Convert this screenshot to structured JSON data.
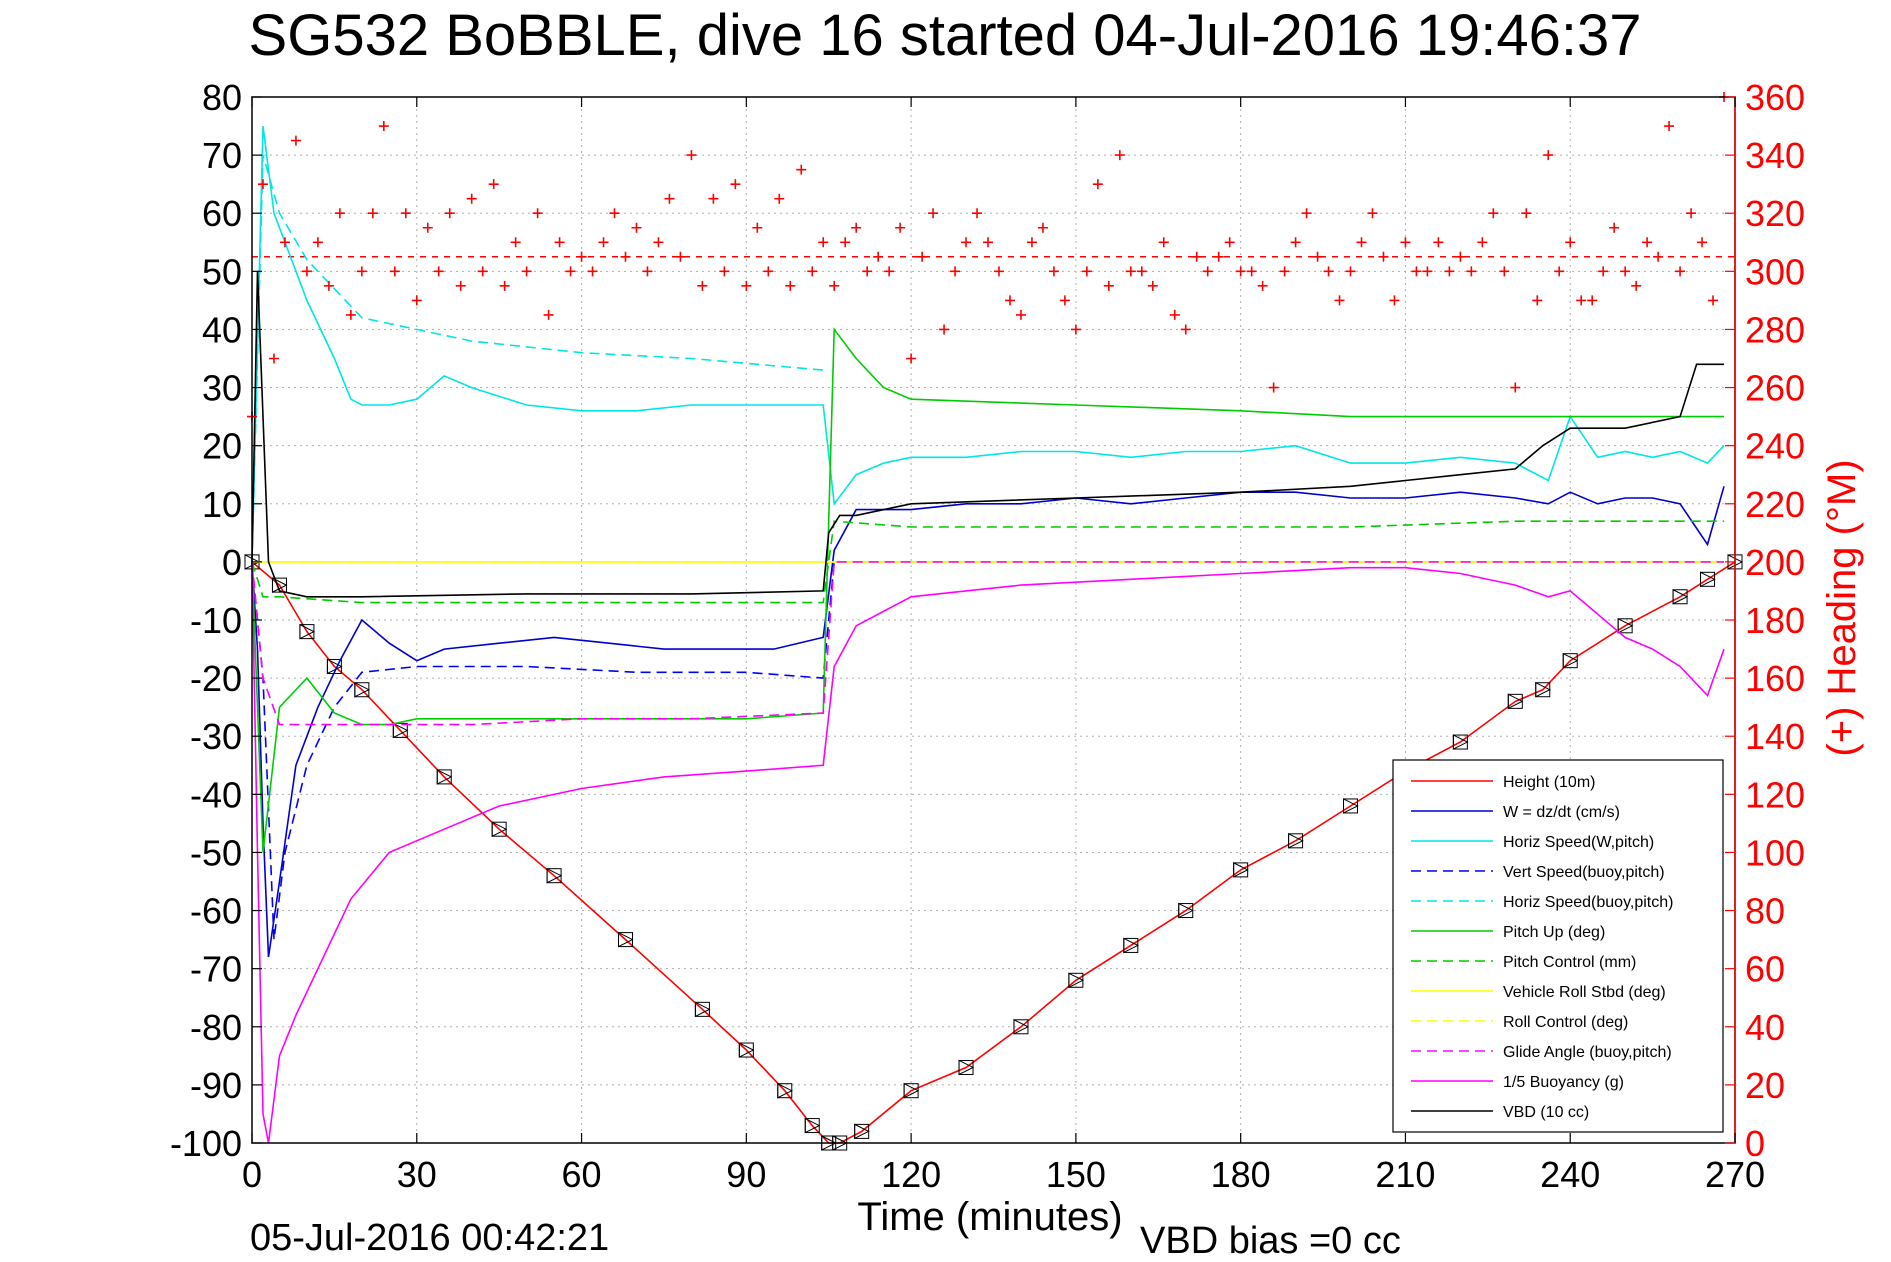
{
  "chart_data": {
    "type": "line",
    "title": "SG532 BoBBLE, dive 16 started 04-Jul-2016 19:46:37",
    "xlabel": "Time (minutes)",
    "ylabel_right": "(+) Heading (°M)",
    "xlim": [
      0,
      270
    ],
    "ylim": [
      -100,
      80
    ],
    "ylim_right": [
      0,
      360
    ],
    "x_ticks": [
      0,
      30,
      60,
      90,
      120,
      150,
      180,
      210,
      240,
      270
    ],
    "y_ticks": [
      -100,
      -90,
      -80,
      -70,
      -60,
      -50,
      -40,
      -30,
      -20,
      -10,
      0,
      10,
      20,
      30,
      40,
      50,
      60,
      70,
      80
    ],
    "y_ticks_right": [
      0,
      20,
      40,
      60,
      80,
      100,
      120,
      140,
      160,
      180,
      200,
      220,
      240,
      260,
      280,
      300,
      320,
      340,
      360
    ],
    "grid": true,
    "legend_position": "bottom-right",
    "end_time": "05-Jul-2016 00:42:21",
    "vbd_bias": "VBD bias =0 cc",
    "series": [
      {
        "name": "Height (10m)",
        "color": "#ff0000",
        "style": "solid",
        "markers": "triangle-squares",
        "x": [
          0,
          5,
          10,
          15,
          20,
          27,
          35,
          45,
          55,
          68,
          82,
          90,
          97,
          102,
          105,
          107,
          111,
          120,
          130,
          140,
          150,
          160,
          170,
          180,
          190,
          200,
          210,
          220,
          230,
          235,
          240,
          250,
          260,
          265,
          270
        ],
        "y": [
          0,
          -4,
          -12,
          -18,
          -22,
          -29,
          -37,
          -46,
          -54,
          -65,
          -77,
          -84,
          -91,
          -97,
          -100,
          -100,
          -98,
          -91,
          -87,
          -80,
          -72,
          -66,
          -60,
          -53,
          -48,
          -42,
          -36,
          -31,
          -24,
          -22,
          -17,
          -11,
          -6,
          -3,
          0
        ]
      },
      {
        "name": "W = dz/dt (cm/s)",
        "color": "#0000cc",
        "style": "solid",
        "x": [
          0,
          1,
          2,
          3,
          5,
          8,
          12,
          16,
          20,
          25,
          30,
          35,
          45,
          55,
          65,
          75,
          85,
          95,
          104,
          106,
          110,
          120,
          130,
          140,
          150,
          160,
          170,
          180,
          190,
          200,
          210,
          220,
          230,
          236,
          240,
          245,
          250,
          255,
          260,
          265,
          268
        ],
        "y": [
          0,
          -15,
          -45,
          -68,
          -55,
          -35,
          -25,
          -17,
          -10,
          -14,
          -17,
          -15,
          -14,
          -13,
          -14,
          -15,
          -15,
          -15,
          -13,
          2,
          9,
          9,
          10,
          10,
          11,
          10,
          11,
          12,
          12,
          11,
          11,
          12,
          11,
          10,
          12,
          10,
          11,
          11,
          10,
          3,
          13
        ]
      },
      {
        "name": "Horiz Speed(W,pitch)",
        "color": "#00e5e5",
        "style": "solid",
        "x": [
          0,
          2,
          4,
          6,
          10,
          15,
          18,
          20,
          25,
          30,
          35,
          40,
          50,
          60,
          70,
          80,
          90,
          104,
          106,
          110,
          115,
          120,
          130,
          140,
          150,
          160,
          170,
          180,
          190,
          200,
          210,
          220,
          230,
          236,
          240,
          245,
          250,
          255,
          260,
          265,
          268
        ],
        "y": [
          0,
          75,
          60,
          55,
          45,
          35,
          28,
          27,
          27,
          28,
          32,
          30,
          27,
          26,
          26,
          27,
          27,
          27,
          10,
          15,
          17,
          18,
          18,
          19,
          19,
          18,
          19,
          19,
          20,
          17,
          17,
          18,
          17,
          14,
          25,
          18,
          19,
          18,
          19,
          17,
          20
        ]
      },
      {
        "name": "Vert Speed(buoy,pitch)",
        "color": "#0000ff",
        "style": "dashed",
        "x": [
          0,
          2,
          4,
          6,
          10,
          15,
          20,
          30,
          50,
          70,
          90,
          104,
          106
        ],
        "y": [
          0,
          -20,
          -65,
          -50,
          -35,
          -25,
          -19,
          -18,
          -18,
          -19,
          -19,
          -20,
          0
        ]
      },
      {
        "name": "Horiz Speed(buoy,pitch)",
        "color": "#00e5e5",
        "style": "dashed",
        "x": [
          0,
          2,
          5,
          10,
          20,
          40,
          60,
          80,
          104
        ],
        "y": [
          0,
          70,
          60,
          52,
          42,
          38,
          36,
          35,
          33
        ]
      },
      {
        "name": "Pitch Up (deg)",
        "color": "#00cc00",
        "style": "solid",
        "x": [
          0,
          2,
          5,
          10,
          15,
          20,
          25,
          30,
          50,
          70,
          90,
          104,
          106,
          110,
          115,
          120,
          150,
          180,
          200,
          210,
          230,
          240,
          250,
          260,
          268
        ],
        "y": [
          0,
          -50,
          -25,
          -20,
          -26,
          -28,
          -28,
          -27,
          -27,
          -27,
          -27,
          -26,
          40,
          35,
          30,
          28,
          27,
          26,
          25,
          25,
          25,
          25,
          25,
          25,
          25
        ]
      },
      {
        "name": "Pitch Control (mm)",
        "color": "#00cc00",
        "style": "dashed",
        "x": [
          0,
          2,
          5,
          20,
          104,
          106,
          120,
          200,
          230,
          250,
          268
        ],
        "y": [
          0,
          -6,
          -6,
          -7,
          -7,
          7,
          6,
          6,
          7,
          7,
          7
        ]
      },
      {
        "name": "Vehicle Roll Stbd (deg)",
        "color": "#ffff00",
        "style": "solid",
        "x": [
          0,
          5,
          10,
          30,
          60,
          90,
          104,
          106,
          120,
          150,
          180,
          210,
          240,
          250,
          260,
          268
        ],
        "y": [
          0,
          0,
          0,
          0,
          0,
          0,
          0,
          0,
          0,
          0,
          0,
          0,
          0,
          0,
          0,
          0
        ]
      },
      {
        "name": "Roll Control (deg)",
        "color": "#ffff00",
        "style": "dashed",
        "x": [
          0,
          30,
          60,
          90,
          120,
          150,
          180,
          210,
          240,
          268
        ],
        "y": [
          0,
          0,
          0,
          0,
          0,
          0,
          0,
          0,
          0,
          0
        ]
      },
      {
        "name": "Glide Angle (buoy,pitch)",
        "color": "#ff00ff",
        "style": "dashed",
        "x": [
          0,
          2,
          5,
          10,
          20,
          40,
          60,
          80,
          104,
          106,
          130,
          160,
          190,
          200,
          230,
          268
        ],
        "y": [
          0,
          -20,
          -28,
          -28,
          -28,
          -28,
          -27,
          -27,
          -26,
          0,
          0,
          0,
          0,
          0,
          0,
          0
        ]
      },
      {
        "name": "1/5 Buoyancy (g)",
        "color": "#ff00ff",
        "style": "solid",
        "x": [
          0,
          1,
          2,
          3,
          5,
          8,
          12,
          18,
          25,
          35,
          45,
          60,
          75,
          90,
          104,
          106,
          110,
          120,
          130,
          140,
          160,
          180,
          200,
          210,
          220,
          230,
          236,
          240,
          245,
          250,
          255,
          260,
          265,
          268
        ],
        "y": [
          0,
          -50,
          -95,
          -100,
          -85,
          -78,
          -70,
          -58,
          -50,
          -46,
          -42,
          -39,
          -37,
          -36,
          -35,
          -18,
          -11,
          -6,
          -5,
          -4,
          -3,
          -2,
          -1,
          -1,
          -2,
          -4,
          -6,
          -5,
          -9,
          -13,
          -15,
          -18,
          -23,
          -15
        ]
      },
      {
        "name": "VBD (10 cc)",
        "color": "#000000",
        "style": "solid",
        "x": [
          0,
          1,
          3,
          5,
          10,
          20,
          50,
          80,
          104,
          105,
          107,
          110,
          120,
          150,
          180,
          200,
          210,
          220,
          230,
          235,
          240,
          250,
          260,
          263,
          268
        ],
        "y": [
          0,
          50,
          0,
          -5,
          -6,
          -6,
          -5.5,
          -5.5,
          -5,
          5,
          8,
          8,
          10,
          11,
          12,
          13,
          14,
          15,
          16,
          20,
          23,
          23,
          25,
          34,
          34
        ]
      }
    ],
    "heading_series": {
      "name": "(+) Heading",
      "color": "#ff0000",
      "style": "plus-markers",
      "reference_heading": 305,
      "x": [
        0,
        2,
        4,
        6,
        8,
        10,
        12,
        14,
        16,
        18,
        20,
        22,
        24,
        26,
        28,
        30,
        32,
        34,
        36,
        38,
        40,
        42,
        44,
        46,
        48,
        50,
        52,
        54,
        56,
        58,
        60,
        62,
        64,
        66,
        68,
        70,
        72,
        74,
        76,
        78,
        80,
        82,
        84,
        86,
        88,
        90,
        92,
        94,
        96,
        98,
        100,
        102,
        104,
        106,
        108,
        110,
        112,
        114,
        116,
        118,
        120,
        122,
        124,
        126,
        128,
        130,
        132,
        134,
        136,
        138,
        140,
        142,
        144,
        146,
        148,
        150,
        152,
        154,
        156,
        158,
        160,
        162,
        164,
        166,
        168,
        170,
        172,
        174,
        176,
        178,
        180,
        182,
        184,
        186,
        188,
        190,
        192,
        194,
        196,
        198,
        200,
        202,
        204,
        206,
        208,
        210,
        212,
        214,
        216,
        218,
        220,
        222,
        224,
        226,
        228,
        230,
        232,
        234,
        236,
        238,
        240,
        242,
        244,
        246,
        248,
        250,
        252,
        254,
        256,
        258,
        260,
        262,
        264,
        266,
        268
      ],
      "y": [
        250,
        330,
        270,
        310,
        345,
        300,
        310,
        295,
        320,
        285,
        300,
        320,
        350,
        300,
        320,
        290,
        315,
        300,
        320,
        295,
        325,
        300,
        330,
        295,
        310,
        300,
        320,
        285,
        310,
        300,
        305,
        300,
        310,
        320,
        305,
        315,
        300,
        310,
        325,
        305,
        340,
        295,
        325,
        300,
        330,
        295,
        315,
        300,
        325,
        295,
        335,
        300,
        310,
        295,
        310,
        315,
        300,
        305,
        300,
        315,
        270,
        305,
        320,
        280,
        300,
        310,
        320,
        310,
        300,
        290,
        285,
        310,
        315,
        300,
        290,
        280,
        300,
        330,
        295,
        340,
        300,
        300,
        295,
        310,
        285,
        280,
        305,
        300,
        305,
        310,
        300,
        300,
        295,
        260,
        300,
        310,
        320,
        305,
        300,
        290,
        300,
        310,
        320,
        305,
        290,
        310,
        300,
        300,
        310,
        300,
        305,
        300,
        310,
        320,
        300,
        260,
        320,
        290,
        340,
        300,
        310,
        290,
        290,
        300,
        315,
        300,
        295,
        310,
        305,
        350,
        300,
        320,
        310,
        290,
        360
      ]
    }
  }
}
